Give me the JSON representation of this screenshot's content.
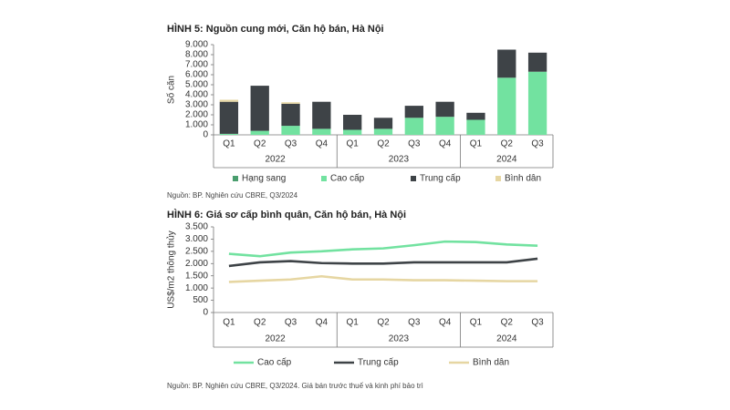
{
  "chart_data": [
    {
      "type": "bar",
      "stacked": true,
      "title": "HÌNH 5: Nguồn cung mới, Căn hộ bán, Hà Nội",
      "y_label": "Số căn",
      "source": "Nguồn: BP. Nghiên cứu CBRE, Q3/2024",
      "legend": "bottom",
      "groups": [
        {
          "name": "2022",
          "categories": [
            "Q1",
            "Q2",
            "Q3",
            "Q4"
          ]
        },
        {
          "name": "2023",
          "categories": [
            "Q1",
            "Q2",
            "Q3",
            "Q4"
          ]
        },
        {
          "name": "2024",
          "categories": [
            "Q1",
            "Q2",
            "Q3"
          ]
        }
      ],
      "series": [
        {
          "name": "Hạng sang",
          "color": "#4a9e6e",
          "values": [
            0,
            0,
            0,
            0,
            0,
            0,
            0,
            0,
            0,
            0,
            0
          ]
        },
        {
          "name": "Cao cấp",
          "color": "#72e2a0",
          "values": [
            100,
            400,
            900,
            600,
            500,
            600,
            1700,
            1800,
            1500,
            5700,
            6300
          ]
        },
        {
          "name": "Trung cấp",
          "color": "#3e4347",
          "values": [
            3200,
            4500,
            2200,
            2700,
            1500,
            1100,
            1200,
            1500,
            700,
            2800,
            1900
          ]
        },
        {
          "name": "Bình dân",
          "color": "#e6d6a2",
          "values": [
            200,
            0,
            150,
            0,
            0,
            0,
            0,
            0,
            0,
            0,
            0
          ]
        }
      ],
      "ylim": [
        0,
        9000
      ],
      "yticks": [
        0,
        {
          "value": 1000,
          "label": "1.000"
        },
        {
          "value": 2000,
          "label": "2.000"
        },
        {
          "value": 3000,
          "label": "3.000"
        },
        {
          "value": 4000,
          "label": "4.000"
        },
        {
          "value": 5000,
          "label": "5.000"
        },
        {
          "value": 6000,
          "label": "6.000"
        },
        {
          "value": 7000,
          "label": "7.000"
        },
        {
          "value": 8000,
          "label": "8.000"
        },
        {
          "value": 9000,
          "label": "9.000"
        }
      ],
      "grid": false
    },
    {
      "type": "line",
      "title": "HÌNH 6: Giá sơ cấp bình quân, Căn hộ bán, Hà Nội",
      "y_label": "US$/m2 thông thủy",
      "source": "Nguồn: BP. Nghiên cứu CBRE, Q3/2024. Giá bán trước thuế và kinh phí bảo trì",
      "legend": "bottom",
      "groups": [
        {
          "name": "2022",
          "categories": [
            "Q1",
            "Q2",
            "Q3",
            "Q4"
          ]
        },
        {
          "name": "2023",
          "categories": [
            "Q1",
            "Q2",
            "Q3",
            "Q4"
          ]
        },
        {
          "name": "2024",
          "categories": [
            "Q1",
            "Q2",
            "Q3"
          ]
        }
      ],
      "series": [
        {
          "name": "Cao cấp",
          "color": "#72e2a0",
          "values": [
            2400,
            2300,
            2450,
            2500,
            2580,
            2620,
            2750,
            2900,
            2880,
            2780,
            2730
          ]
        },
        {
          "name": "Trung cấp",
          "color": "#3e4347",
          "values": [
            1900,
            2050,
            2100,
            2020,
            2000,
            2000,
            2050,
            2050,
            2050,
            2050,
            2200
          ]
        },
        {
          "name": "Bình dân",
          "color": "#e6d6a2",
          "values": [
            1250,
            1300,
            1350,
            1480,
            1350,
            1350,
            1320,
            1320,
            1300,
            1280,
            1280
          ]
        }
      ],
      "ylim": [
        0,
        3500
      ],
      "yticks": [
        0,
        500,
        {
          "value": 1000,
          "label": "1.000"
        },
        {
          "value": 1500,
          "label": "1.500"
        },
        {
          "value": 2000,
          "label": "2.000"
        },
        {
          "value": 2500,
          "label": "2.500"
        },
        {
          "value": 3000,
          "label": "3.000"
        },
        {
          "value": 3500,
          "label": "3.500"
        }
      ],
      "grid": false
    }
  ]
}
